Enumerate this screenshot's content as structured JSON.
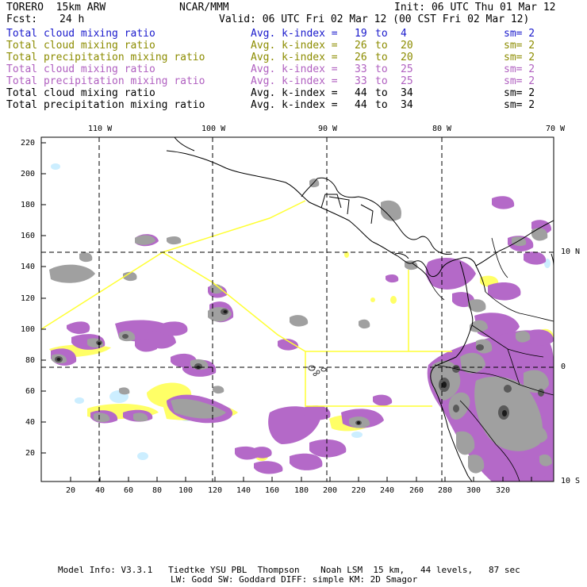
{
  "header": {
    "model": "TORERO  15km ARW",
    "center": "NCAR/MMM",
    "init": "Init: 06 UTC Thu 01 Mar 12",
    "fcst_label": "Fcst:",
    "fcst_value": "24 h",
    "valid": "Valid: 06 UTC Fri 02 Mar 12 (00 CST Fri 02 Mar 12)"
  },
  "legend": [
    {
      "field": "Total cloud mixing ratio",
      "kindex": "Avg. k-index =",
      "from": "19",
      "to_word": "to",
      "to": "4",
      "sm": "sm= 2",
      "color": "#1a1acc"
    },
    {
      "field": "Total cloud mixing ratio",
      "kindex": "Avg. k-index =",
      "from": "26",
      "to_word": "to",
      "to": "20",
      "sm": "sm= 2",
      "color": "#8c8c00"
    },
    {
      "field": "Total precipitation mixing ratio",
      "kindex": "Avg. k-index =",
      "from": "26",
      "to_word": "to",
      "to": "20",
      "sm": "sm= 2",
      "color": "#8c8c00"
    },
    {
      "field": "Total cloud mixing ratio",
      "kindex": "Avg. k-index =",
      "from": "33",
      "to_word": "to",
      "to": "25",
      "sm": "sm= 2",
      "color": "#b060c0"
    },
    {
      "field": "Total precipitation mixing ratio",
      "kindex": "Avg. k-index =",
      "from": "33",
      "to_word": "to",
      "to": "25",
      "sm": "sm= 2",
      "color": "#b060c0"
    },
    {
      "field": "Total cloud mixing ratio",
      "kindex": "Avg. k-index =",
      "from": "44",
      "to_word": "to",
      "to": "34",
      "sm": "sm= 2",
      "color": "#000000"
    },
    {
      "field": "Total precipitation mixing ratio",
      "kindex": "Avg. k-index =",
      "from": "44",
      "to_word": "to",
      "to": "34",
      "sm": "sm= 2",
      "color": "#000000"
    }
  ],
  "map": {
    "lon_labels": [
      "110 W",
      "100 W",
      "90 W",
      "80 W",
      "70 W"
    ],
    "lat_labels": [
      "10 N",
      "0",
      "10 S"
    ],
    "x_ticks": [
      "20",
      "40",
      "60",
      "80",
      "100",
      "120",
      "140",
      "160",
      "180",
      "200",
      "220",
      "240",
      "260",
      "280",
      "300",
      "320"
    ],
    "y_ticks": [
      "220",
      "200",
      "180",
      "160",
      "140",
      "120",
      "100",
      "80",
      "60",
      "40",
      "20"
    ],
    "colors": {
      "purple": "#b469c8",
      "yellow": "#ffff66",
      "light_blue": "#cceeff",
      "gray": "#a0a0a0",
      "dark_gray": "#6a6a6a",
      "black": "#202020",
      "boundary_yellow": "#ffff33"
    }
  },
  "footer": {
    "line1": "Model Info: V3.3.1   Tiedtke YSU PBL  Thompson    Noah LSM  15 km,   44 levels,   87 sec",
    "line2": "LW: Godd SW: Goddard DIFF: simple KM: 2D Smagor"
  }
}
